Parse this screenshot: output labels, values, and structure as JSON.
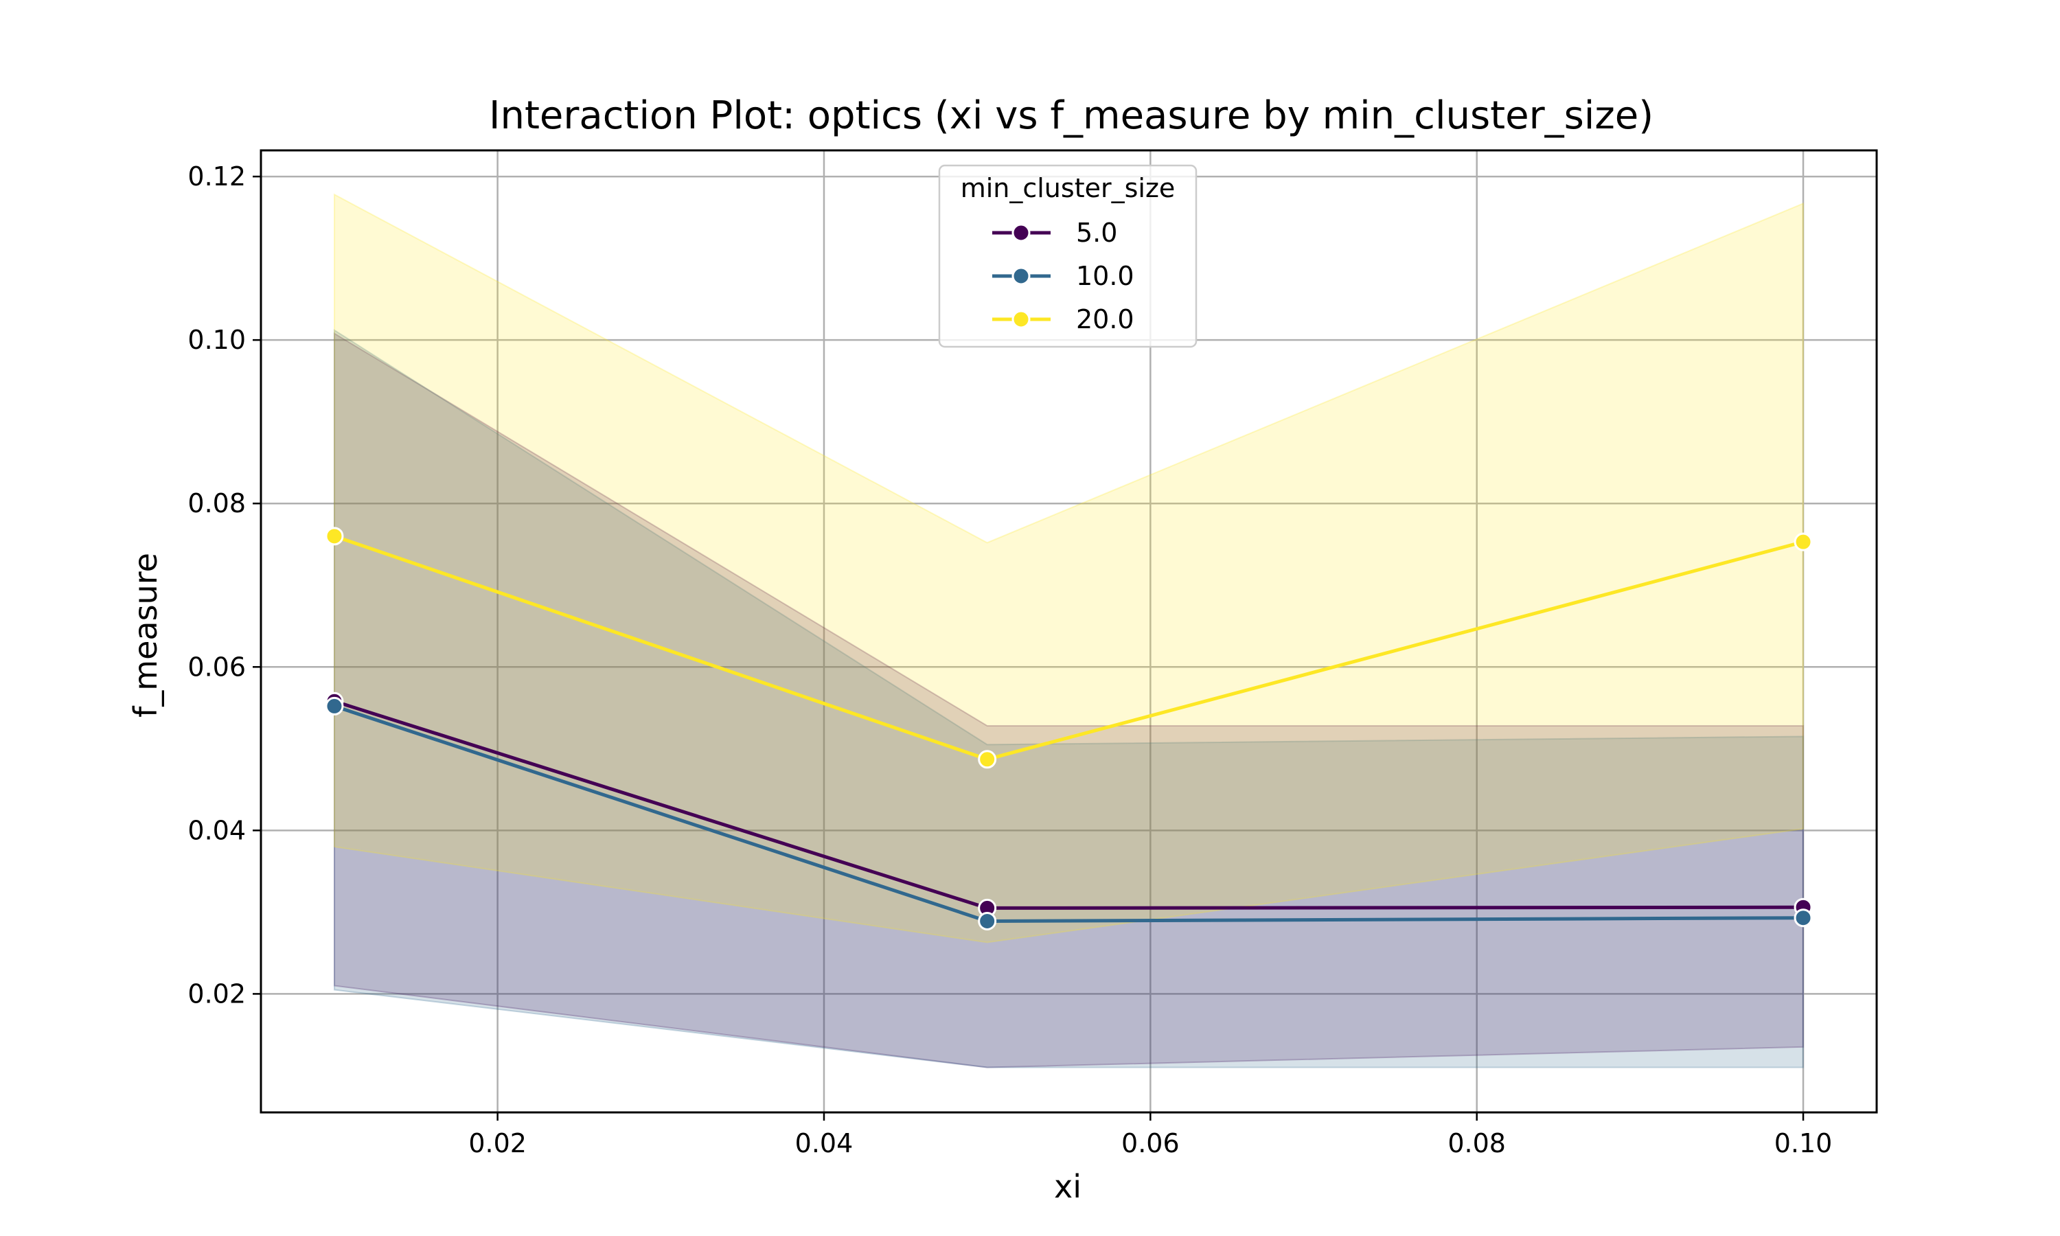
{
  "chart_data": {
    "type": "line",
    "title": "Interaction Plot: optics (xi vs f_measure by min_cluster_size)",
    "xlabel": "xi",
    "ylabel": "f_measure",
    "xlim": [
      0.0055,
      0.1045
    ],
    "ylim": [
      0.0055,
      0.1232
    ],
    "x_ticks": [
      "0.02",
      "0.04",
      "0.06",
      "0.08",
      "0.10"
    ],
    "x_tick_values": [
      0.02,
      0.04,
      0.06,
      0.08,
      0.1
    ],
    "y_ticks": [
      "0.02",
      "0.04",
      "0.06",
      "0.08",
      "0.10",
      "0.12"
    ],
    "y_tick_values": [
      0.02,
      0.04,
      0.06,
      0.08,
      0.1,
      0.12
    ],
    "grid": true,
    "legend_title": "min_cluster_size",
    "legend_position": "top-center",
    "x": [
      0.01,
      0.05,
      0.1
    ],
    "series": [
      {
        "name": "5.0",
        "color": "#440154",
        "values": [
          0.0558,
          0.0305,
          0.0306
        ],
        "ci_lower": [
          0.021,
          0.011,
          0.0135
        ],
        "ci_upper": [
          0.1008,
          0.0528,
          0.0528
        ]
      },
      {
        "name": "10.0",
        "color": "#31688e",
        "values": [
          0.0552,
          0.0289,
          0.0293
        ],
        "ci_lower": [
          0.0205,
          0.011,
          0.011
        ],
        "ci_upper": [
          0.1012,
          0.0505,
          0.0515
        ]
      },
      {
        "name": "20.0",
        "color": "#fde725",
        "values": [
          0.076,
          0.0487,
          0.0753
        ],
        "ci_lower": [
          0.038,
          0.0263,
          0.0402
        ],
        "ci_upper": [
          0.1178,
          0.0752,
          0.1167
        ]
      }
    ]
  }
}
